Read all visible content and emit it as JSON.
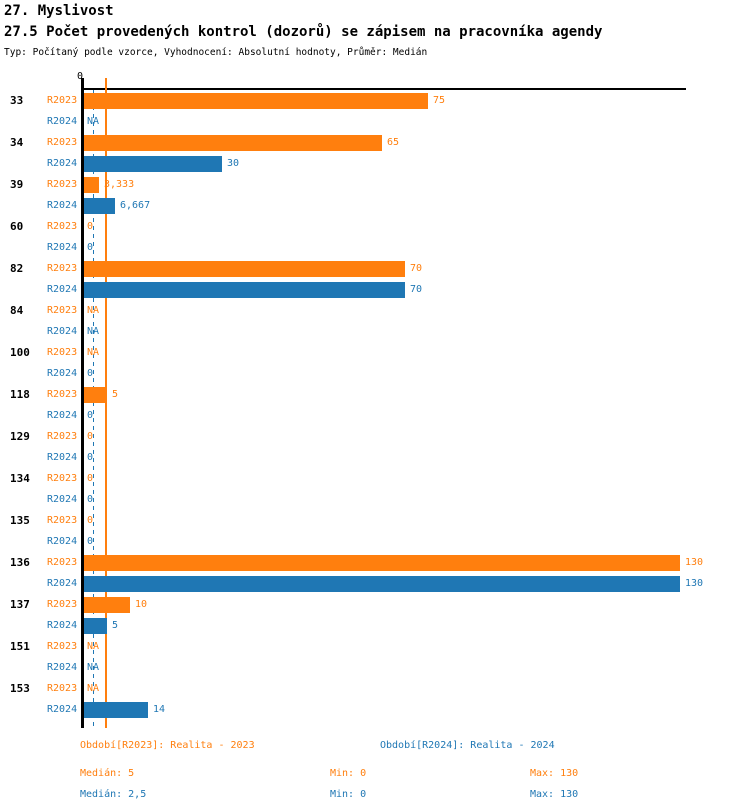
{
  "header": {
    "title1": "27. Myslivost",
    "title2": "27.5 Počet provedených kontrol (dozorů) se zápisem na pracovníka agendy",
    "subtitle": "Typ: Počítaný podle vzorce, Vyhodnocení: Absolutní hodnoty, Průměr: Medián"
  },
  "colors": {
    "r2023": "#ff7f0e",
    "r2024": "#1f77b4",
    "axis": "#000000"
  },
  "axis": {
    "zero_label": "0"
  },
  "chart_data": {
    "type": "bar",
    "orientation": "horizontal",
    "grid": false,
    "x_axis_range": [
      0,
      131.6
    ],
    "series_labels": {
      "r2023": "R2023",
      "r2024": "R2024"
    },
    "categories": [
      "33",
      "34",
      "39",
      "60",
      "82",
      "84",
      "100",
      "118",
      "129",
      "134",
      "135",
      "136",
      "137",
      "151",
      "153"
    ],
    "rows": [
      {
        "category": "33",
        "r2023": {
          "value": 75,
          "label": "75"
        },
        "r2024": {
          "value": null,
          "label": "NA"
        }
      },
      {
        "category": "34",
        "r2023": {
          "value": 65,
          "label": "65"
        },
        "r2024": {
          "value": 30,
          "label": "30"
        }
      },
      {
        "category": "39",
        "r2023": {
          "value": 3.333,
          "label": "3,333"
        },
        "r2024": {
          "value": 6.667,
          "label": "6,667"
        }
      },
      {
        "category": "60",
        "r2023": {
          "value": 0,
          "label": "0"
        },
        "r2024": {
          "value": 0,
          "label": "0"
        }
      },
      {
        "category": "82",
        "r2023": {
          "value": 70,
          "label": "70"
        },
        "r2024": {
          "value": 70,
          "label": "70"
        }
      },
      {
        "category": "84",
        "r2023": {
          "value": null,
          "label": "NA"
        },
        "r2024": {
          "value": null,
          "label": "NA"
        }
      },
      {
        "category": "100",
        "r2023": {
          "value": null,
          "label": "NA"
        },
        "r2024": {
          "value": 0,
          "label": "0"
        }
      },
      {
        "category": "118",
        "r2023": {
          "value": 5,
          "label": "5"
        },
        "r2024": {
          "value": 0,
          "label": "0"
        }
      },
      {
        "category": "129",
        "r2023": {
          "value": 0,
          "label": "0"
        },
        "r2024": {
          "value": 0,
          "label": "0"
        }
      },
      {
        "category": "134",
        "r2023": {
          "value": 0,
          "label": "0"
        },
        "r2024": {
          "value": 0,
          "label": "0"
        }
      },
      {
        "category": "135",
        "r2023": {
          "value": 0,
          "label": "0"
        },
        "r2024": {
          "value": 0,
          "label": "0"
        }
      },
      {
        "category": "136",
        "r2023": {
          "value": 130,
          "label": "130"
        },
        "r2024": {
          "value": 130,
          "label": "130"
        }
      },
      {
        "category": "137",
        "r2023": {
          "value": 10,
          "label": "10"
        },
        "r2024": {
          "value": 5,
          "label": "5"
        }
      },
      {
        "category": "151",
        "r2023": {
          "value": null,
          "label": "NA"
        },
        "r2024": {
          "value": null,
          "label": "NA"
        }
      },
      {
        "category": "153",
        "r2023": {
          "value": null,
          "label": "NA"
        },
        "r2024": {
          "value": 14,
          "label": "14"
        }
      }
    ],
    "x_max_value": 130,
    "medians": {
      "r2023": 5,
      "r2024": 2.5
    }
  },
  "legend": {
    "r2023": "Období[R2023]: Realita - 2023",
    "r2024": "Období[R2024]: Realita - 2024"
  },
  "stats": {
    "r2023": {
      "median": "Medián: 5",
      "min": "Min: 0",
      "max": "Max: 130"
    },
    "r2024": {
      "median": "Medián: 2,5",
      "min": "Min: 0",
      "max": "Max: 130"
    }
  }
}
